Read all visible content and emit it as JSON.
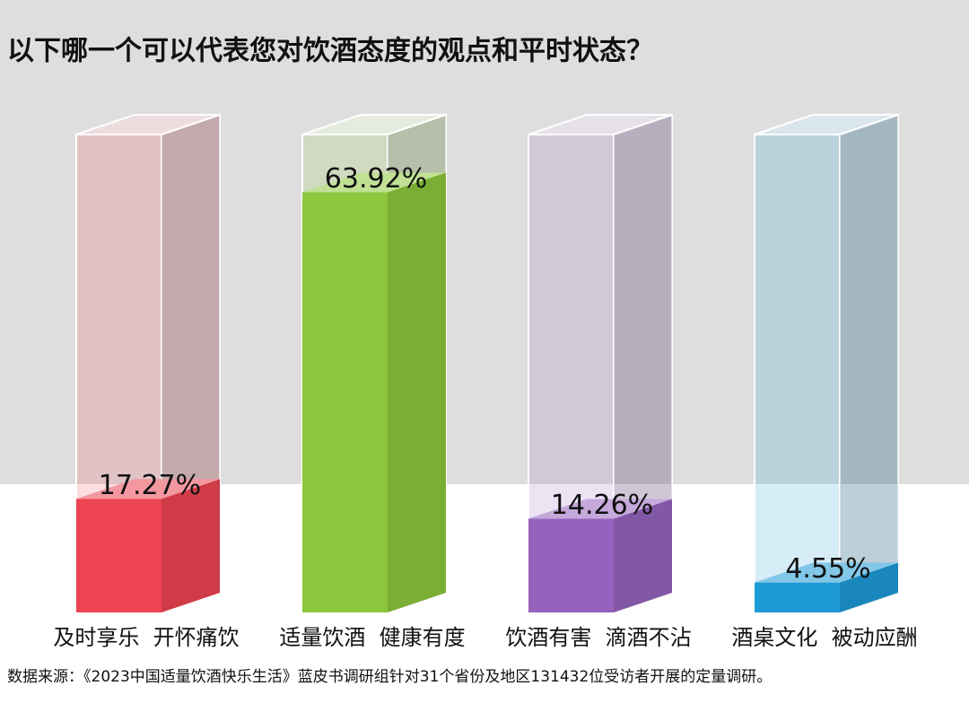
{
  "chart_data": {
    "type": "bar3d",
    "title": "以下哪一个可以代表您对饮酒态度的观点和平时状态？",
    "categories": [
      "及时享乐  开怀痛饮",
      "适量饮酒  健康有度",
      "饮酒有害  滴酒不沾",
      "酒桌文化  被动应酬"
    ],
    "values": [
      17.27,
      63.92,
      14.26,
      4.55
    ],
    "value_labels": [
      "17.27%",
      "63.92%",
      "14.26%",
      "4.55%"
    ],
    "colors": [
      "#ec4451",
      "#8cc63c",
      "#9563bd",
      "#1d9ad6"
    ],
    "source": "数据来源：《2023中国适量饮酒快乐生活》蓝皮书调研组针对31个省份及地区131432位受访者开展的定量调研。"
  }
}
